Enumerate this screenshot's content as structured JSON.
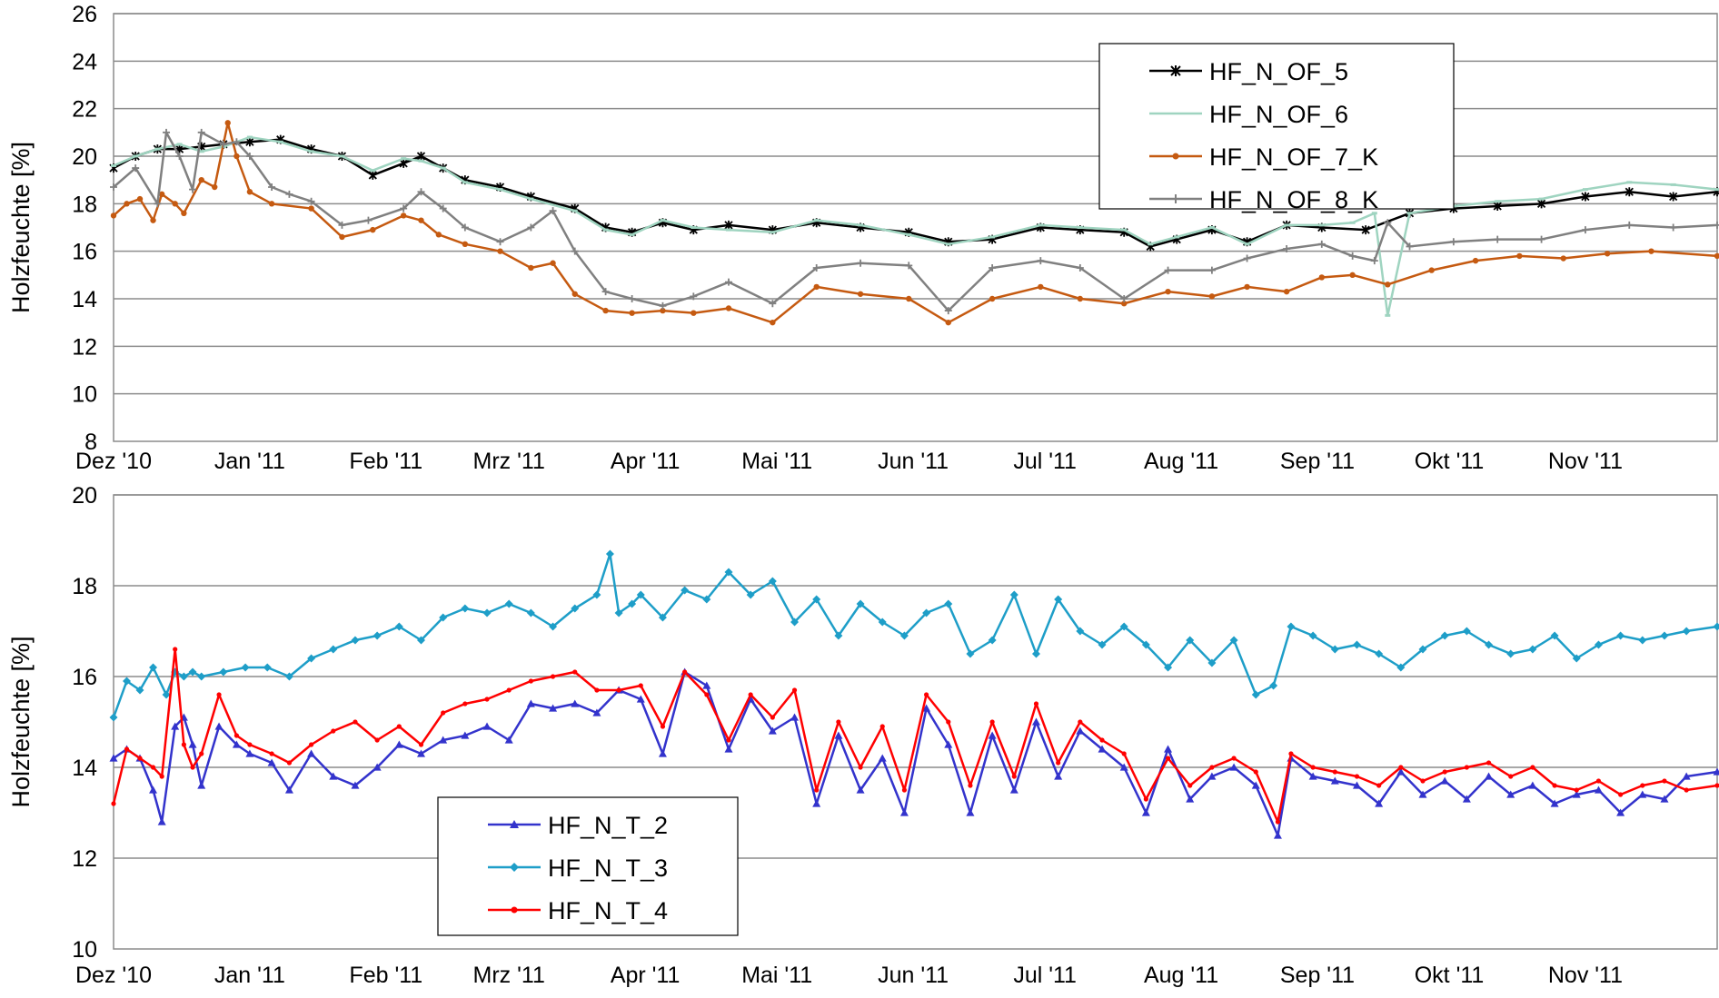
{
  "chart_data": [
    {
      "type": "line",
      "ylabel": "Holzfeuchte  [%]",
      "ylim": [
        8,
        26
      ],
      "yticks": [
        8,
        10,
        12,
        14,
        16,
        18,
        20,
        22,
        24,
        26
      ],
      "xticks": [
        "Dez '10",
        "Jan '11",
        "Feb '11",
        "Mrz '11",
        "Apr '11",
        "Mai '11",
        "Jun '11",
        "Jul '11",
        "Aug '11",
        "Sep '11",
        "Okt '11",
        "Nov '11"
      ],
      "x_range_days": [
        0,
        365
      ],
      "grid": true,
      "legend_position": "top-right",
      "series": [
        {
          "name": "HF_N_OF_5",
          "color": "#000000",
          "marker": "star",
          "x": [
            0,
            5,
            10,
            15,
            20,
            25,
            31,
            38,
            45,
            52,
            59,
            66,
            70,
            75,
            80,
            88,
            95,
            105,
            112,
            118,
            125,
            132,
            140,
            150,
            160,
            170,
            181,
            190,
            200,
            211,
            220,
            230,
            236,
            242,
            250,
            258,
            267,
            275,
            285,
            295,
            305,
            315,
            325,
            335,
            345,
            355,
            365
          ],
          "y": [
            19.5,
            20.0,
            20.3,
            20.3,
            20.4,
            20.5,
            20.6,
            20.7,
            20.3,
            20.0,
            19.2,
            19.7,
            20.0,
            19.5,
            19.0,
            18.7,
            18.3,
            17.8,
            17.0,
            16.8,
            17.2,
            16.9,
            17.1,
            16.9,
            17.2,
            17.0,
            16.8,
            16.4,
            16.5,
            17.0,
            16.9,
            16.8,
            16.2,
            16.5,
            16.9,
            16.4,
            17.1,
            17.0,
            16.9,
            17.6,
            17.8,
            17.9,
            18.0,
            18.3,
            18.5,
            18.3,
            18.5
          ]
        },
        {
          "name": "HF_N_OF_6",
          "color": "#9fd4c0",
          "marker": "dash",
          "x": [
            0,
            5,
            10,
            15,
            20,
            25,
            31,
            38,
            45,
            52,
            59,
            66,
            70,
            75,
            80,
            88,
            95,
            105,
            112,
            118,
            125,
            132,
            140,
            150,
            160,
            170,
            181,
            190,
            200,
            211,
            220,
            230,
            236,
            242,
            250,
            258,
            267,
            275,
            282,
            287,
            290,
            295,
            305,
            315,
            325,
            335,
            345,
            355,
            365
          ],
          "y": [
            19.6,
            20.0,
            20.3,
            20.5,
            20.2,
            20.4,
            20.8,
            20.6,
            20.2,
            20.0,
            19.4,
            19.9,
            19.8,
            19.5,
            18.9,
            18.6,
            18.2,
            17.7,
            16.9,
            16.7,
            17.3,
            17.0,
            16.9,
            16.8,
            17.3,
            17.1,
            16.7,
            16.3,
            16.6,
            17.1,
            17.0,
            16.9,
            16.3,
            16.6,
            17.0,
            16.3,
            17.1,
            17.1,
            17.2,
            17.6,
            13.3,
            17.6,
            17.9,
            18.1,
            18.2,
            18.6,
            18.9,
            18.8,
            18.6
          ]
        },
        {
          "name": "HF_N_OF_7_K",
          "color": "#c55a11",
          "marker": "circle",
          "x": [
            0,
            3,
            6,
            9,
            11,
            14,
            16,
            20,
            23,
            26,
            28,
            31,
            36,
            45,
            52,
            59,
            66,
            70,
            74,
            80,
            88,
            95,
            100,
            105,
            112,
            118,
            125,
            132,
            140,
            150,
            160,
            170,
            181,
            190,
            200,
            211,
            220,
            230,
            240,
            250,
            258,
            267,
            275,
            282,
            290,
            300,
            310,
            320,
            330,
            340,
            350,
            365
          ],
          "y": [
            17.5,
            18.0,
            18.2,
            17.3,
            18.4,
            18.0,
            17.6,
            19.0,
            18.7,
            21.4,
            20.0,
            18.5,
            18.0,
            17.8,
            16.6,
            16.9,
            17.5,
            17.3,
            16.7,
            16.3,
            16.0,
            15.3,
            15.5,
            14.2,
            13.5,
            13.4,
            13.5,
            13.4,
            13.6,
            13.0,
            14.5,
            14.2,
            14.0,
            13.0,
            14.0,
            14.5,
            14.0,
            13.8,
            14.3,
            14.1,
            14.5,
            14.3,
            14.9,
            15.0,
            14.6,
            15.2,
            15.6,
            15.8,
            15.7,
            15.9,
            16.0,
            15.8
          ]
        },
        {
          "name": "HF_N_OF_8_K",
          "color": "#808080",
          "marker": "plus",
          "x": [
            0,
            5,
            10,
            12,
            15,
            18,
            20,
            25,
            28,
            31,
            36,
            40,
            45,
            52,
            58,
            66,
            70,
            75,
            80,
            88,
            95,
            100,
            105,
            112,
            118,
            125,
            132,
            140,
            150,
            160,
            170,
            181,
            190,
            200,
            211,
            220,
            230,
            240,
            250,
            258,
            267,
            275,
            282,
            287,
            290,
            295,
            305,
            315,
            325,
            335,
            345,
            355,
            365
          ],
          "y": [
            18.7,
            19.5,
            18.0,
            21.0,
            20.0,
            18.6,
            21.0,
            20.5,
            20.6,
            20.0,
            18.7,
            18.4,
            18.1,
            17.1,
            17.3,
            17.8,
            18.5,
            17.8,
            17.0,
            16.4,
            17.0,
            17.7,
            16.0,
            14.3,
            14.0,
            13.7,
            14.1,
            14.7,
            13.8,
            15.3,
            15.5,
            15.4,
            13.5,
            15.3,
            15.6,
            15.3,
            14.0,
            15.2,
            15.2,
            15.7,
            16.1,
            16.3,
            15.8,
            15.6,
            17.2,
            16.2,
            16.4,
            16.5,
            16.5,
            16.9,
            17.1,
            17.0,
            17.1
          ]
        }
      ]
    },
    {
      "type": "line",
      "ylabel": "Holzfeuchte  [%]",
      "ylim": [
        10,
        20
      ],
      "yticks": [
        10,
        12,
        14,
        16,
        18,
        20
      ],
      "xticks": [
        "Dez '10",
        "Jan '11",
        "Feb '11",
        "Mrz '11",
        "Apr '11",
        "Mai '11",
        "Jun '11",
        "Jul '11",
        "Aug '11",
        "Sep '11",
        "Okt '11",
        "Nov '11"
      ],
      "x_range_days": [
        0,
        365
      ],
      "grid": true,
      "legend_position": "bottom-left",
      "series": [
        {
          "name": "HF_N_T_2",
          "color": "#3333cc",
          "marker": "triangle",
          "x": [
            0,
            3,
            6,
            9,
            11,
            14,
            16,
            18,
            20,
            24,
            28,
            31,
            36,
            40,
            45,
            50,
            55,
            60,
            65,
            70,
            75,
            80,
            85,
            90,
            95,
            100,
            105,
            110,
            115,
            120,
            125,
            130,
            135,
            140,
            145,
            150,
            155,
            160,
            165,
            170,
            175,
            180,
            185,
            190,
            195,
            200,
            205,
            210,
            215,
            220,
            225,
            230,
            235,
            240,
            245,
            250,
            255,
            260,
            265,
            268,
            273,
            278,
            283,
            288,
            293,
            298,
            303,
            308,
            313,
            318,
            323,
            328,
            333,
            338,
            343,
            348,
            353,
            358,
            365
          ],
          "y": [
            14.2,
            14.4,
            14.2,
            13.5,
            12.8,
            14.9,
            15.1,
            14.5,
            13.6,
            14.9,
            14.5,
            14.3,
            14.1,
            13.5,
            14.3,
            13.8,
            13.6,
            14.0,
            14.5,
            14.3,
            14.6,
            14.7,
            14.9,
            14.6,
            15.4,
            15.3,
            15.4,
            15.2,
            15.7,
            15.5,
            14.3,
            16.1,
            15.8,
            14.4,
            15.5,
            14.8,
            15.1,
            13.2,
            14.7,
            13.5,
            14.2,
            13.0,
            15.3,
            14.5,
            13.0,
            14.7,
            13.5,
            15.0,
            13.8,
            14.8,
            14.4,
            14.0,
            13.0,
            14.4,
            13.3,
            13.8,
            14.0,
            13.6,
            12.5,
            14.2,
            13.8,
            13.7,
            13.6,
            13.2,
            13.9,
            13.4,
            13.7,
            13.3,
            13.8,
            13.4,
            13.6,
            13.2,
            13.4,
            13.5,
            13.0,
            13.4,
            13.3,
            13.8,
            13.9
          ]
        },
        {
          "name": "HF_N_T_3",
          "color": "#1e9ec8",
          "marker": "diamond",
          "x": [
            0,
            3,
            6,
            9,
            12,
            14,
            16,
            18,
            20,
            25,
            30,
            35,
            40,
            45,
            50,
            55,
            60,
            65,
            70,
            75,
            80,
            85,
            90,
            95,
            100,
            105,
            110,
            113,
            115,
            118,
            120,
            125,
            130,
            135,
            140,
            145,
            150,
            155,
            160,
            165,
            170,
            175,
            180,
            185,
            190,
            195,
            200,
            205,
            210,
            215,
            220,
            225,
            230,
            235,
            240,
            245,
            250,
            255,
            260,
            264,
            268,
            273,
            278,
            283,
            288,
            293,
            298,
            303,
            308,
            313,
            318,
            323,
            328,
            333,
            338,
            343,
            348,
            353,
            358,
            365
          ],
          "y": [
            15.1,
            15.9,
            15.7,
            16.2,
            15.6,
            16.1,
            16.0,
            16.1,
            16.0,
            16.1,
            16.2,
            16.2,
            16.0,
            16.4,
            16.6,
            16.8,
            16.9,
            17.1,
            16.8,
            17.3,
            17.5,
            17.4,
            17.6,
            17.4,
            17.1,
            17.5,
            17.8,
            18.7,
            17.4,
            17.6,
            17.8,
            17.3,
            17.9,
            17.7,
            18.3,
            17.8,
            18.1,
            17.2,
            17.7,
            16.9,
            17.6,
            17.2,
            16.9,
            17.4,
            17.6,
            16.5,
            16.8,
            17.8,
            16.5,
            17.7,
            17.0,
            16.7,
            17.1,
            16.7,
            16.2,
            16.8,
            16.3,
            16.8,
            15.6,
            15.8,
            17.1,
            16.9,
            16.6,
            16.7,
            16.5,
            16.2,
            16.6,
            16.9,
            17.0,
            16.7,
            16.5,
            16.6,
            16.9,
            16.4,
            16.7,
            16.9,
            16.8,
            16.9,
            17.0,
            17.1
          ]
        },
        {
          "name": "HF_N_T_4",
          "color": "#ff0000",
          "marker": "dot",
          "x": [
            0,
            3,
            6,
            9,
            11,
            14,
            16,
            18,
            20,
            24,
            28,
            31,
            36,
            40,
            45,
            50,
            55,
            60,
            65,
            70,
            75,
            80,
            85,
            90,
            95,
            100,
            105,
            110,
            115,
            120,
            125,
            130,
            135,
            140,
            145,
            150,
            155,
            160,
            165,
            170,
            175,
            180,
            185,
            190,
            195,
            200,
            205,
            210,
            215,
            220,
            225,
            230,
            235,
            240,
            245,
            250,
            255,
            260,
            265,
            268,
            273,
            278,
            283,
            288,
            293,
            298,
            303,
            308,
            313,
            318,
            323,
            328,
            333,
            338,
            343,
            348,
            353,
            358,
            365
          ],
          "y": [
            13.2,
            14.4,
            14.2,
            14.0,
            13.8,
            16.6,
            14.5,
            14.0,
            14.3,
            15.6,
            14.7,
            14.5,
            14.3,
            14.1,
            14.5,
            14.8,
            15.0,
            14.6,
            14.9,
            14.5,
            15.2,
            15.4,
            15.5,
            15.7,
            15.9,
            16.0,
            16.1,
            15.7,
            15.7,
            15.8,
            14.9,
            16.1,
            15.6,
            14.6,
            15.6,
            15.1,
            15.7,
            13.5,
            15.0,
            14.0,
            14.9,
            13.5,
            15.6,
            15.0,
            13.6,
            15.0,
            13.8,
            15.4,
            14.1,
            15.0,
            14.6,
            14.3,
            13.3,
            14.2,
            13.6,
            14.0,
            14.2,
            13.9,
            12.8,
            14.3,
            14.0,
            13.9,
            13.8,
            13.6,
            14.0,
            13.7,
            13.9,
            14.0,
            14.1,
            13.8,
            14.0,
            13.6,
            13.5,
            13.7,
            13.4,
            13.6,
            13.7,
            13.5,
            13.6
          ]
        }
      ]
    }
  ]
}
